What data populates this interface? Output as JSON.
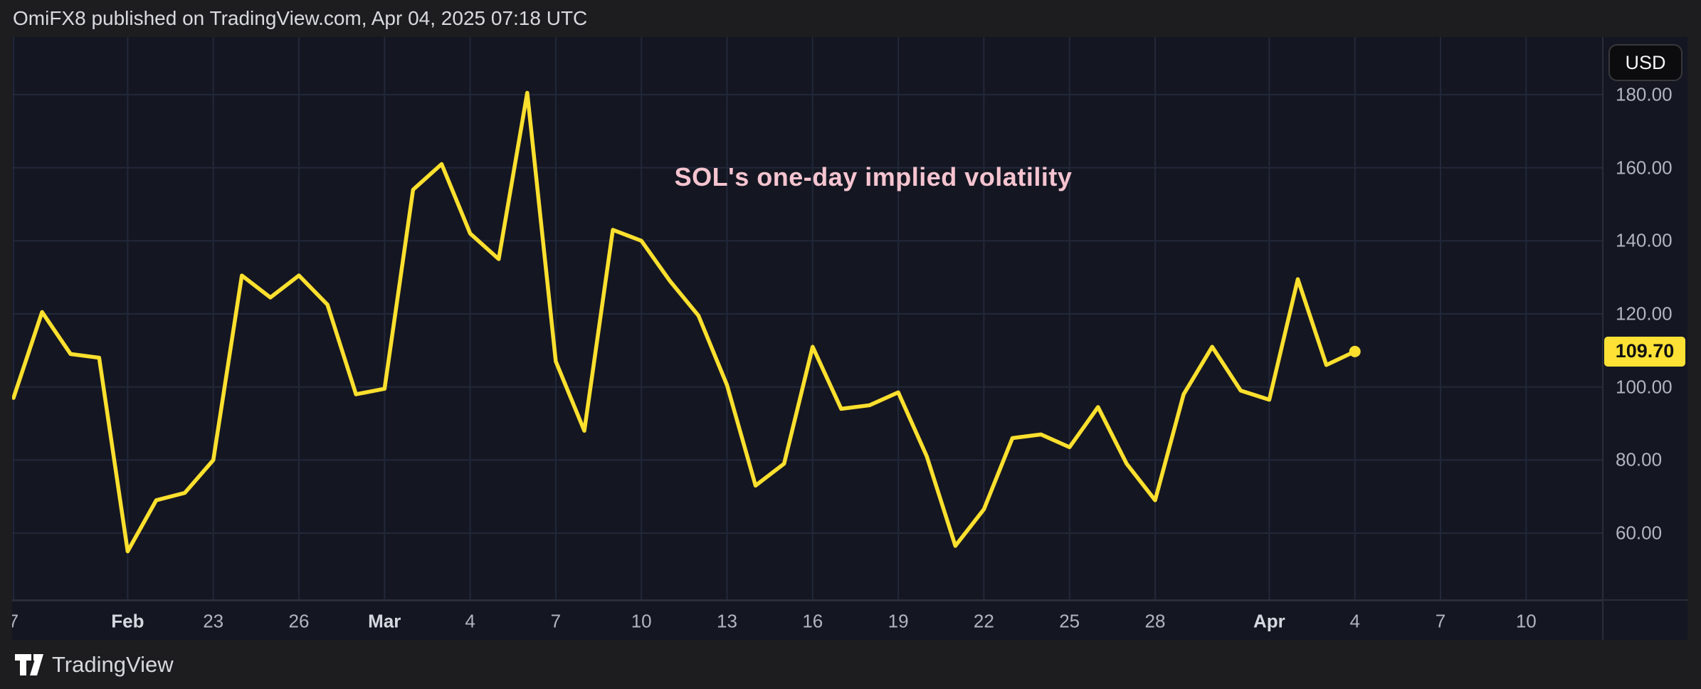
{
  "header": {
    "text": "OmiFX8 published on TradingView.com, Apr 04, 2025 07:18 UTC"
  },
  "chart": {
    "title": "SOL's one-day implied volatility",
    "currency_button_label": "USD",
    "last_price_label": "109.70",
    "price_ticks": [
      {
        "label": "180.00",
        "value": 180
      },
      {
        "label": "160.00",
        "value": 160
      },
      {
        "label": "140.00",
        "value": 140
      },
      {
        "label": "120.00",
        "value": 120
      },
      {
        "label": "100.00",
        "value": 100
      },
      {
        "label": "80.00",
        "value": 80
      },
      {
        "label": "60.00",
        "value": 60
      }
    ],
    "time_ticks": [
      {
        "label": "7",
        "day": 0,
        "bold": false
      },
      {
        "label": "Feb",
        "day": 4,
        "bold": true
      },
      {
        "label": "23",
        "day": 7,
        "bold": false
      },
      {
        "label": "26",
        "day": 10,
        "bold": false
      },
      {
        "label": "Mar",
        "day": 13,
        "bold": true
      },
      {
        "label": "4",
        "day": 16,
        "bold": false
      },
      {
        "label": "7",
        "day": 19,
        "bold": false
      },
      {
        "label": "10",
        "day": 22,
        "bold": false
      },
      {
        "label": "13",
        "day": 25,
        "bold": false
      },
      {
        "label": "16",
        "day": 28,
        "bold": false
      },
      {
        "label": "19",
        "day": 31,
        "bold": false
      },
      {
        "label": "22",
        "day": 34,
        "bold": false
      },
      {
        "label": "25",
        "day": 37,
        "bold": false
      },
      {
        "label": "28",
        "day": 40,
        "bold": false
      },
      {
        "label": "Apr",
        "day": 44,
        "bold": true
      },
      {
        "label": "4",
        "day": 47,
        "bold": false
      },
      {
        "label": "7",
        "day": 50,
        "bold": false
      },
      {
        "label": "10",
        "day": 53,
        "bold": false
      }
    ]
  },
  "footer": {
    "brand": "TradingView"
  },
  "colors": {
    "page_bg": "#1d1d20",
    "panel_bg": "#141722",
    "grid": "#222839",
    "border": "#2a2e39",
    "axis_text": "#b2b5be",
    "month_text": "#d5d8df",
    "line": "#ffe02e",
    "badge_bg": "#ffe135",
    "badge_text": "#101010",
    "title_pink": "#f6c4d0",
    "header_text": "#d9dade"
  },
  "chart_data": {
    "type": "line",
    "title": "SOL's one-day implied volatility",
    "ylabel": "USD",
    "xlabel": "",
    "ylim": [
      38,
      198
    ],
    "grid": true,
    "legend_position": "none",
    "last_value_marker": 109.7,
    "x": [
      "Feb 16",
      "Feb 17",
      "Feb 18",
      "Feb 19",
      "Feb 20",
      "Feb 21",
      "Feb 22",
      "Feb 23",
      "Feb 24",
      "Feb 25",
      "Feb 26",
      "Feb 27",
      "Feb 28",
      "Mar 1",
      "Mar 2",
      "Mar 3",
      "Mar 4",
      "Mar 5",
      "Mar 6",
      "Mar 7",
      "Mar 8",
      "Mar 9",
      "Mar 10",
      "Mar 11",
      "Mar 12",
      "Mar 13",
      "Mar 14",
      "Mar 15",
      "Mar 16",
      "Mar 17",
      "Mar 18",
      "Mar 19",
      "Mar 20",
      "Mar 21",
      "Mar 22",
      "Mar 23",
      "Mar 24",
      "Mar 25",
      "Mar 26",
      "Mar 27",
      "Mar 28",
      "Mar 29",
      "Mar 30",
      "Mar 31",
      "Apr 1",
      "Apr 2",
      "Apr 3",
      "Apr 4"
    ],
    "values": [
      97,
      120.5,
      109,
      108,
      55,
      69,
      71,
      80,
      130.5,
      124.5,
      130.5,
      122.5,
      98,
      99.5,
      154,
      161,
      142,
      135,
      180.5,
      107,
      88,
      143,
      140,
      129,
      119.5,
      100.5,
      73,
      79,
      111,
      94,
      95,
      98.5,
      81,
      56.5,
      66.5,
      86,
      87,
      83.5,
      94.5,
      79,
      69,
      98,
      111,
      99,
      96.5,
      129.5,
      106,
      109.7
    ]
  }
}
